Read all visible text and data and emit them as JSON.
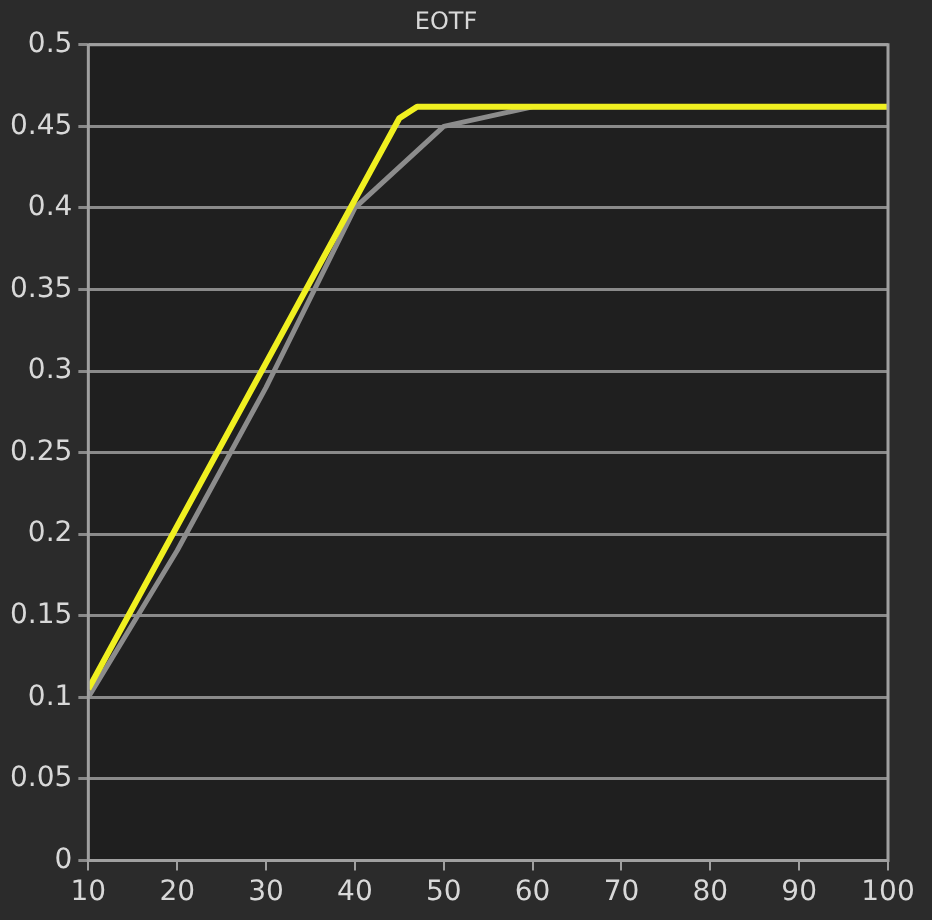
{
  "chart_data": {
    "type": "line",
    "title": "EOTF",
    "series": [
      {
        "color": "#f0f020",
        "x": [
          10,
          45,
          47,
          100
        ],
        "values": [
          0.105,
          0.455,
          0.462,
          0.462
        ]
      },
      {
        "color": "#8c8c8c",
        "x": [
          10,
          20,
          30,
          40,
          50,
          60,
          100
        ],
        "values": [
          0.1,
          0.19,
          0.29,
          0.4,
          0.45,
          0.462,
          0.462
        ]
      }
    ],
    "xlim": [
      10,
      100
    ],
    "xticks": [
      10,
      20,
      30,
      40,
      50,
      60,
      70,
      80,
      90,
      100
    ],
    "ylim": [
      0,
      0.5
    ],
    "yticks": [
      0,
      0.05,
      0.1,
      0.15,
      0.2,
      0.25,
      0.3,
      0.35,
      0.4,
      0.45,
      0.5
    ],
    "grid": "y",
    "legend": false,
    "marker": "none",
    "line_style": "solid"
  }
}
